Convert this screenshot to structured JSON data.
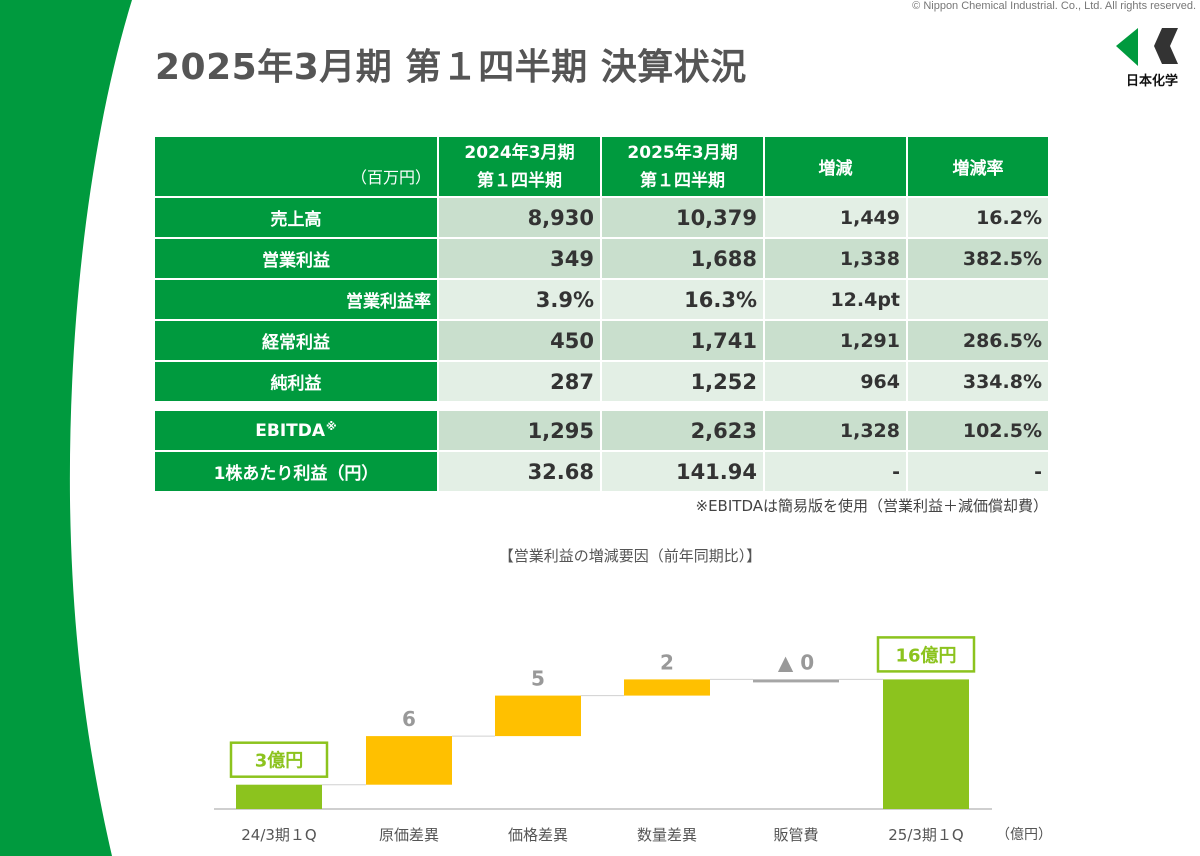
{
  "copyright": "© Nippon Chemical Industrial. Co., Ltd. All rights reserved.",
  "title": "2025年3月期 第１四半期 決算状況",
  "logo": {
    "text": "日本化学",
    "icon": "company-logo-icon",
    "color": "#009a3e"
  },
  "table": {
    "unit_label": "（百万円）",
    "headers": {
      "prev_line1": "2024年3月期",
      "prev_line2": "第１四半期",
      "curr_line1": "2025年3月期",
      "curr_line2": "第１四半期",
      "change": "増減",
      "rate": "増減率"
    },
    "rows": [
      {
        "label": "売上高",
        "prev": "8,930",
        "curr": "10,379",
        "change": "1,449",
        "rate": "16.2%"
      },
      {
        "label": "営業利益",
        "prev": "349",
        "curr": "1,688",
        "change": "1,338",
        "rate": "382.5%"
      },
      {
        "label": "営業利益率",
        "prev": "3.9%",
        "curr": "16.3%",
        "change": "12.4pt",
        "rate": ""
      },
      {
        "label": "経常利益",
        "prev": "450",
        "curr": "1,741",
        "change": "1,291",
        "rate": "286.5%"
      },
      {
        "label": "純利益",
        "prev": "287",
        "curr": "1,252",
        "change": "964",
        "rate": "334.8%"
      }
    ],
    "extra_rows": [
      {
        "label": "EBITDA",
        "label_mark": "※",
        "prev": "1,295",
        "curr": "2,623",
        "change": "1,328",
        "rate": "102.5%"
      },
      {
        "label": "1株あたり利益（円）",
        "prev": "32.68",
        "curr": "141.94",
        "change": "-",
        "rate": "-"
      }
    ],
    "note": "※EBITDAは簡易版を使用（営業利益＋減価償却費）"
  },
  "waterfall": {
    "title": "【営業利益の増減要因（前年同期比）】",
    "unit": "（億円）",
    "start_label": "3億円",
    "end_label": "16億円",
    "chart_data": {
      "type": "bar",
      "subtype": "waterfall",
      "categories": [
        "24/3期１Q",
        "原価差異",
        "価格差異",
        "数量差異",
        "販管費",
        "25/3期１Q"
      ],
      "values": [
        3,
        6,
        5,
        2,
        0,
        16
      ],
      "value_labels": [
        "3億円",
        "6",
        "5",
        "2",
        "▲ 0",
        "16億円"
      ],
      "colors": {
        "total": "#8cc31e",
        "increase": "#ffc000",
        "decrease": "#a6a6a6"
      }
    }
  }
}
